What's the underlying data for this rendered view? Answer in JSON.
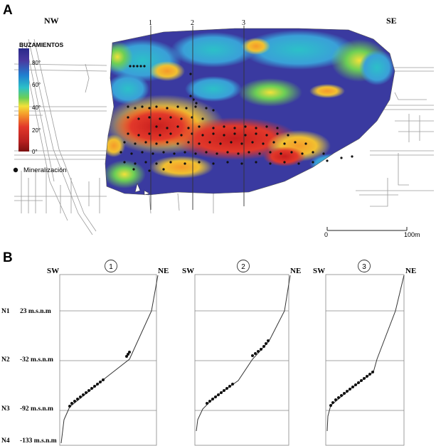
{
  "panelA": {
    "letter": "A",
    "nw": "NW",
    "se": "SE",
    "legend": {
      "title": "BUZAMIENTOS",
      "ticks": [
        "80°",
        "60°",
        "40°",
        "20°",
        "0°"
      ],
      "colors": [
        "#2a2a8a",
        "#4a3aa0",
        "#1f7fd0",
        "#2cc0c8",
        "#6ccf55",
        "#f2e13a",
        "#f59a2a",
        "#e2382a",
        "#b82020",
        "#7a1010"
      ],
      "mineral_label": "Mineralización"
    },
    "section_lines": [
      "1",
      "2",
      "3"
    ],
    "scale": {
      "start": "0",
      "end": "100m"
    }
  },
  "panelB": {
    "letter": "B",
    "levels": [
      {
        "name": "N1",
        "value": "23 m.s.n.m"
      },
      {
        "name": "N2",
        "value": "-32 m.s.n.m"
      },
      {
        "name": "N3",
        "value": "-92 m.s.n.m"
      },
      {
        "name": "N4",
        "value": "-133 m.s.n.m"
      }
    ],
    "sections": [
      {
        "id": "1",
        "left": "SW",
        "right": "NE"
      },
      {
        "id": "2",
        "left": "SW",
        "right": "NE"
      },
      {
        "id": "3",
        "left": "SW",
        "right": "NE"
      }
    ]
  }
}
